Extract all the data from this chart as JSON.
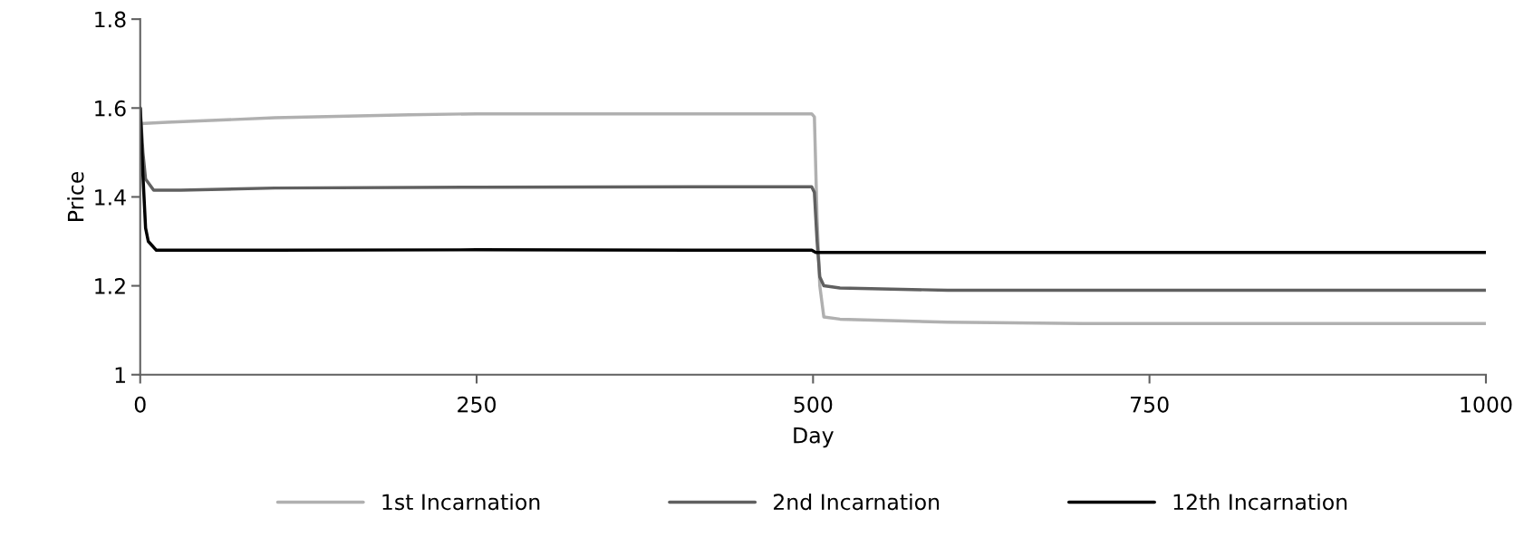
{
  "chart_data": {
    "type": "line",
    "xlabel": "Day",
    "ylabel": "Price",
    "xlim": [
      0,
      1000
    ],
    "xticks": [
      0,
      250,
      500,
      750,
      1000
    ],
    "ylim": [
      1,
      1.8
    ],
    "yticks": [
      1,
      1.2,
      1.4,
      1.6,
      1.8
    ],
    "grid": false,
    "legend": "bottom",
    "marker": "none",
    "line_style": "solid",
    "series": [
      {
        "name": "1st Incarnation",
        "color": "#b0b0b0",
        "x": [
          0,
          20,
          100,
          200,
          250,
          300,
          499,
          501,
          503,
          505,
          508,
          520,
          600,
          700,
          1000
        ],
        "values": [
          1.565,
          1.568,
          1.578,
          1.585,
          1.587,
          1.587,
          1.587,
          1.58,
          1.35,
          1.2,
          1.13,
          1.125,
          1.118,
          1.115,
          1.115
        ]
      },
      {
        "name": "2nd Incarnation",
        "color": "#606060",
        "x": [
          0,
          2,
          4,
          10,
          30,
          100,
          250,
          499,
          501,
          503,
          505,
          508,
          520,
          600,
          1000
        ],
        "values": [
          1.6,
          1.5,
          1.44,
          1.415,
          1.415,
          1.42,
          1.422,
          1.423,
          1.41,
          1.3,
          1.22,
          1.2,
          1.195,
          1.19,
          1.19
        ]
      },
      {
        "name": "12th Incarnation",
        "color": "#000000",
        "x": [
          0,
          2,
          4,
          6,
          12,
          100,
          250,
          499,
          502,
          505,
          1000
        ],
        "values": [
          1.6,
          1.45,
          1.33,
          1.3,
          1.28,
          1.28,
          1.281,
          1.28,
          1.275,
          1.275,
          1.275
        ]
      }
    ]
  }
}
